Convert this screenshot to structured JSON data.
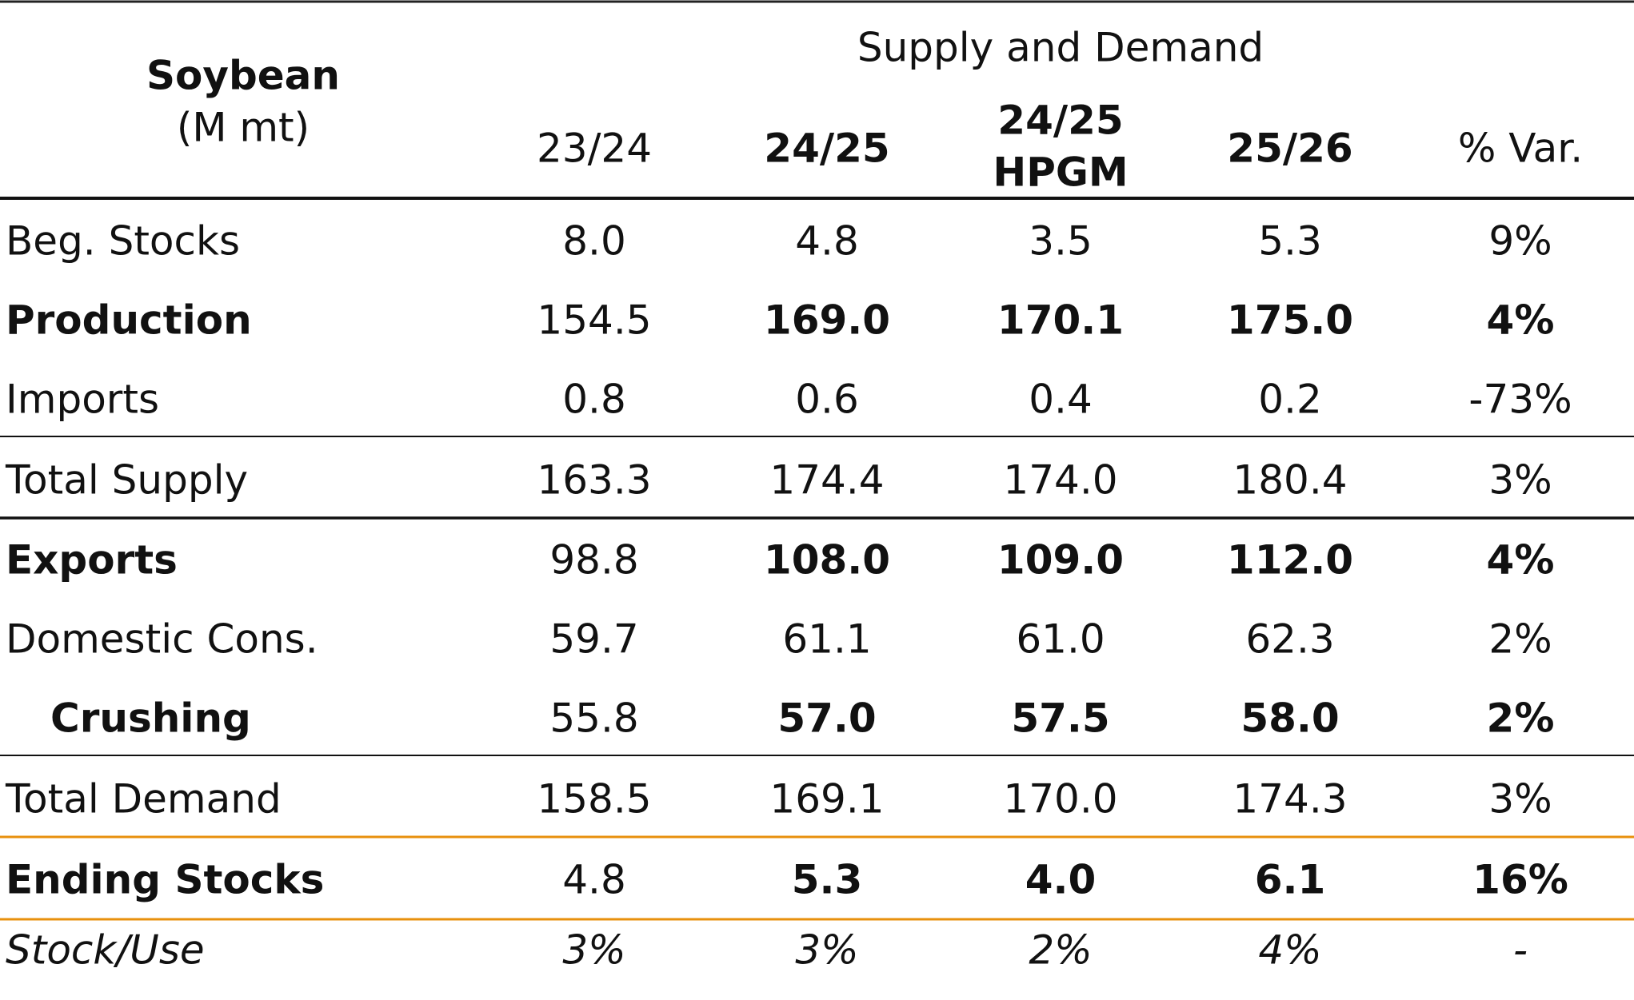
{
  "table": {
    "title": "Soybean",
    "unit": "(M mt)",
    "group_header": "Supply and Demand",
    "columns": [
      "23/24",
      "24/25",
      [
        "24/25",
        "HPGM"
      ],
      "25/26",
      "% Var."
    ],
    "rows": [
      [
        "Beg. Stocks",
        "8.0",
        "4.8",
        "3.5",
        "5.3",
        "9%"
      ],
      [
        "Production",
        "154.5",
        "169.0",
        "170.1",
        "175.0",
        "4%"
      ],
      [
        "Imports",
        "0.8",
        "0.6",
        "0.4",
        "0.2",
        "-73%"
      ],
      [
        "Total Supply",
        "163.3",
        "174.4",
        "174.0",
        "180.4",
        "3%"
      ],
      [
        "Exports",
        "98.8",
        "108.0",
        "109.0",
        "112.0",
        "4%"
      ],
      [
        "Domestic Cons.",
        "59.7",
        "61.1",
        "61.0",
        "62.3",
        "2%"
      ],
      [
        "Crushing",
        "55.8",
        "57.0",
        "57.5",
        "58.0",
        "2%"
      ],
      [
        "Total Demand",
        "158.5",
        "169.1",
        "170.0",
        "174.3",
        "3%"
      ],
      [
        "Ending Stocks",
        "4.8",
        "5.3",
        "4.0",
        "6.1",
        "16%"
      ],
      [
        "Stock/Use",
        "3%",
        "3%",
        "2%",
        "4%",
        "-"
      ]
    ]
  }
}
